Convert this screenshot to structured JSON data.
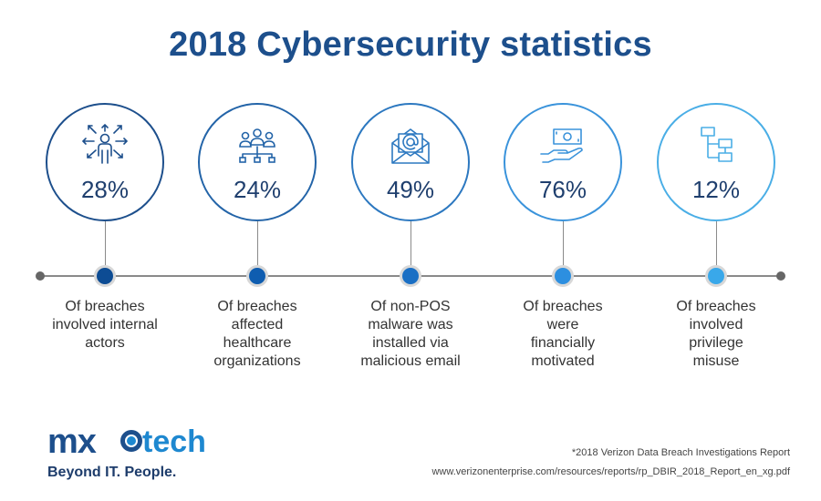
{
  "title": "2018 Cybersecurity statistics",
  "stats": [
    {
      "percent": "28%",
      "caption": "Of breaches involved internal actors",
      "icon": "people-network-icon",
      "color": "#1d4f8c",
      "dot": "#0d4c94"
    },
    {
      "percent": "24%",
      "caption": "Of breaches affected healthcare organizations",
      "icon": "group-network-icon",
      "color": "#2364a8",
      "dot": "#0f5db0"
    },
    {
      "percent": "49%",
      "caption": "Of non-POS malware was installed via malicious email",
      "icon": "email-icon",
      "color": "#2c78c0",
      "dot": "#1a6fc4"
    },
    {
      "percent": "76%",
      "caption": "Of breaches were financially motivated",
      "icon": "money-hand-icon",
      "color": "#3a93db",
      "dot": "#2d8fe0"
    },
    {
      "percent": "12%",
      "caption": "Of breaches involved privilege misuse",
      "icon": "hierarchy-icon",
      "color": "#4aaee6",
      "dot": "#39a8ea"
    }
  ],
  "logo": {
    "mark": "mx",
    "tech": "tech",
    "tagline": "Beyond IT. People."
  },
  "source": {
    "line1": "*2018 Verizon Data Breach Investigations Report",
    "line2": "www.verizonenterprise.com/resources/reports/rp_DBIR_2018_Report_en_xg.pdf"
  }
}
